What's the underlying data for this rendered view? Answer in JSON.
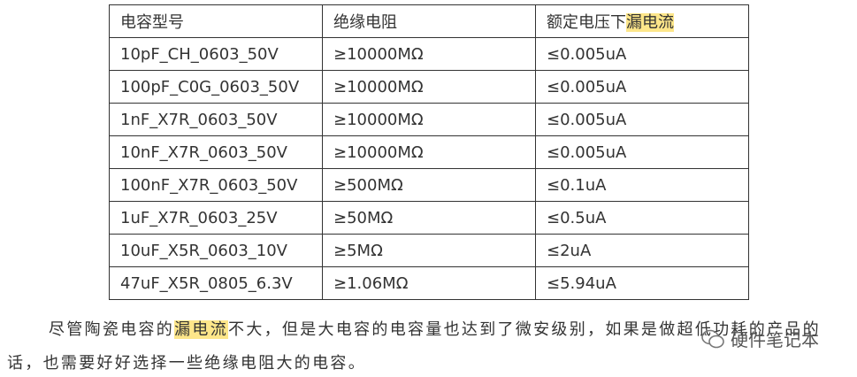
{
  "table": {
    "header": [
      "电容型号",
      "绝缘电阻",
      [
        "额定电压下",
        "漏电流"
      ]
    ],
    "rows": [
      [
        "10pF_CH_0603_50V",
        "≥10000MΩ",
        "≤0.005uA"
      ],
      [
        "100pF_C0G_0603_50V",
        "≥10000MΩ",
        "≤0.005uA"
      ],
      [
        "1nF_X7R_0603_50V",
        "≥10000MΩ",
        "≤0.005uA"
      ],
      [
        "10nF_X7R_0603_50V",
        "≥10000MΩ",
        "≤0.005uA"
      ],
      [
        "100nF_X7R_0603_50V",
        "≥500MΩ",
        "≤0.1uA"
      ],
      [
        "1uF_X7R_0603_25V",
        "≥50MΩ",
        "≤0.5uA"
      ],
      [
        "10uF_X5R_0603_10V",
        "≥5MΩ",
        "≤2uA"
      ],
      [
        "47uF_X5R_0805_6.3V",
        "≥1.06MΩ",
        "≤5.94uA"
      ]
    ]
  },
  "paragraph": {
    "lines": [
      [
        "尽管陶瓷电容的",
        "漏电流",
        "不大，但是大电容的电容量也达到了微安级别，如果是做超低功耗的产品的"
      ],
      [
        "话，也需要好好选择一些绝缘电阻大的电容。"
      ]
    ]
  },
  "watermark": "硬件笔记本"
}
